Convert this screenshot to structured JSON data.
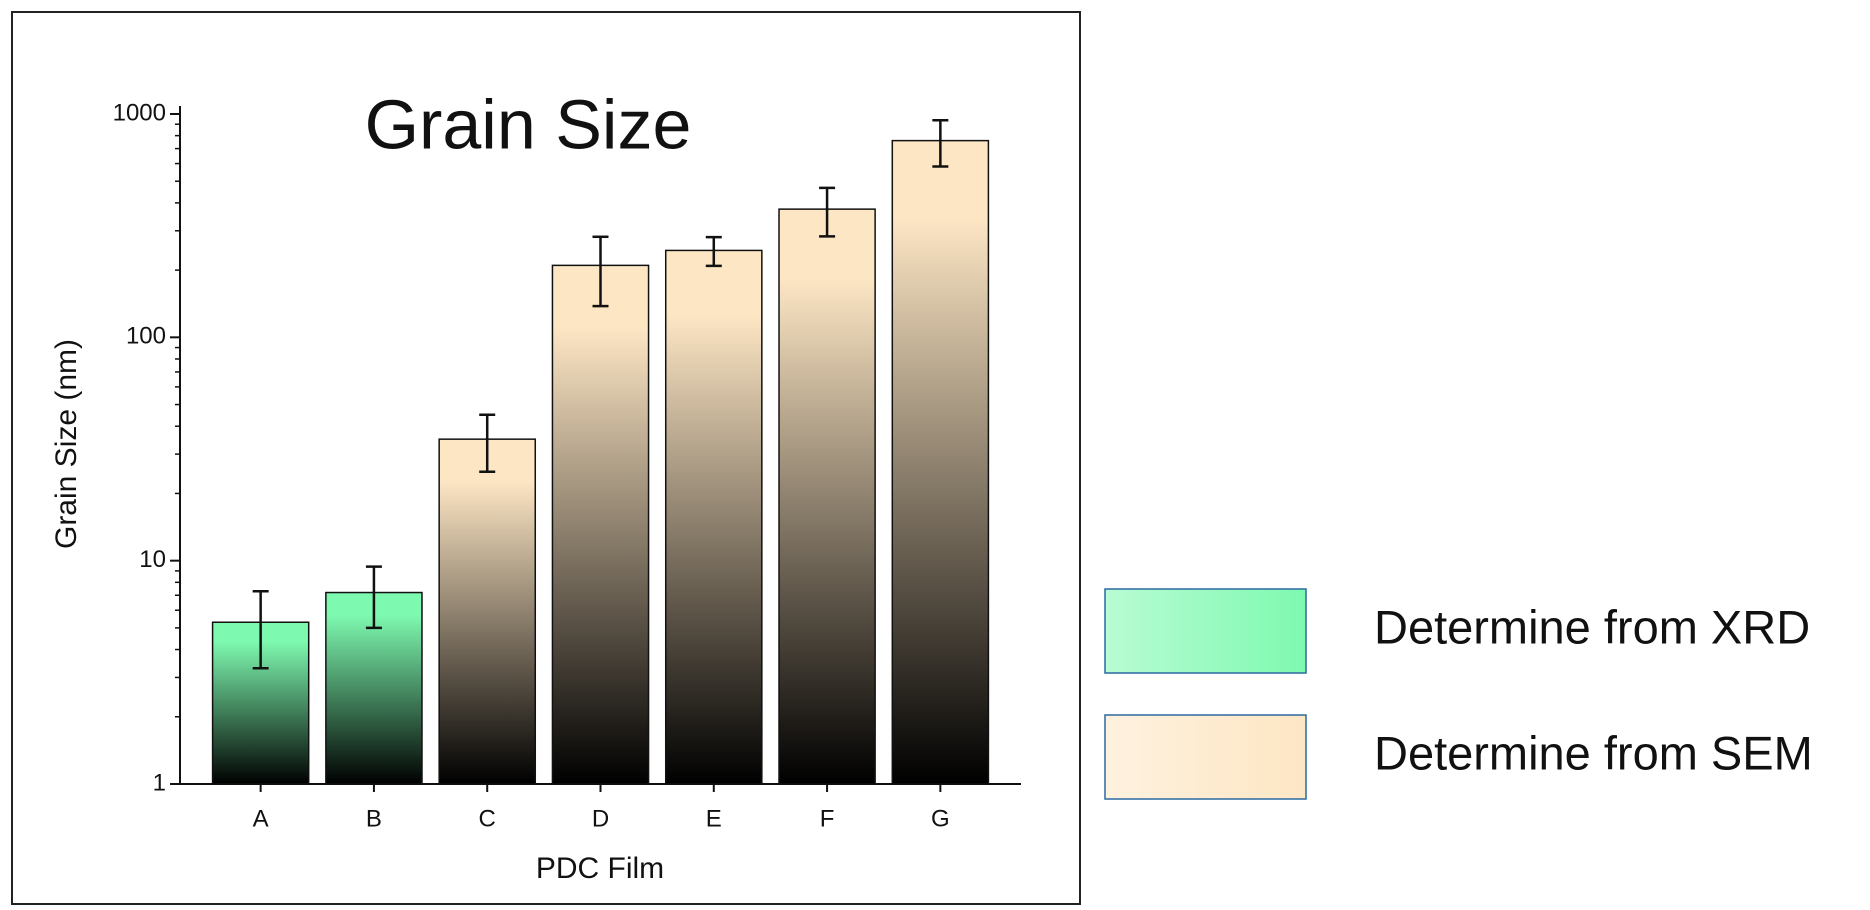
{
  "chart_data": {
    "type": "bar",
    "title": "Grain Size",
    "x_label": "PDC Film",
    "y_label": "Grain Size (nm)",
    "categories": [
      "A",
      "B",
      "C",
      "D",
      "E",
      "F",
      "G"
    ],
    "series": [
      {
        "name": "Determine from XRD",
        "color": "#7ef9b0",
        "values": [
          5.3,
          7.2,
          null,
          null,
          null,
          null,
          null
        ],
        "errors": [
          2,
          2.2,
          null,
          null,
          null,
          null,
          null
        ]
      },
      {
        "name": "Determine from SEM",
        "color": "#fde6c4",
        "values": [
          null,
          null,
          35,
          210,
          245,
          375,
          760
        ],
        "errors": [
          null,
          null,
          10,
          72,
          36,
          92,
          178
        ]
      }
    ],
    "yscale": "log",
    "ylim": [
      1,
      1000
    ],
    "yticks": [
      1,
      10,
      100,
      1000
    ],
    "grid": false,
    "legend": "right"
  }
}
